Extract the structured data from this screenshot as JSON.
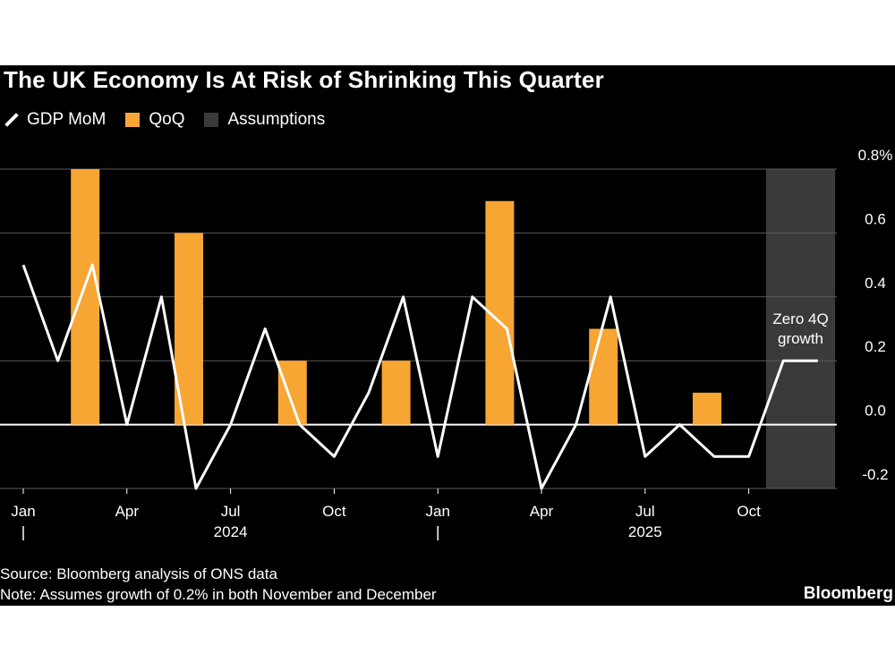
{
  "chart_data": {
    "type": "bar+line",
    "title": "The UK Economy Is At Risk of Shrinking This Quarter",
    "legend": [
      {
        "label": "GDP MoM",
        "kind": "line",
        "color": "#ffffff"
      },
      {
        "label": "QoQ",
        "kind": "bar",
        "color": "#f7a533"
      },
      {
        "label": "Assumptions",
        "kind": "area",
        "color": "#3a3a3a"
      }
    ],
    "months": [
      "2024-01",
      "2024-02",
      "2024-03",
      "2024-04",
      "2024-05",
      "2024-06",
      "2024-07",
      "2024-08",
      "2024-09",
      "2024-10",
      "2024-11",
      "2024-12",
      "2025-01",
      "2025-02",
      "2025-03",
      "2025-04",
      "2025-05",
      "2025-06",
      "2025-07",
      "2025-08",
      "2025-09",
      "2025-10",
      "2025-11",
      "2025-12"
    ],
    "series": [
      {
        "name": "GDP MoM",
        "type": "line",
        "values": [
          0.5,
          0.2,
          0.5,
          0.0,
          0.4,
          -0.2,
          0.0,
          0.3,
          0.0,
          -0.1,
          0.1,
          0.4,
          -0.1,
          0.4,
          0.3,
          -0.2,
          0.0,
          0.4,
          -0.1,
          0.0,
          -0.1,
          -0.1,
          0.2,
          0.2
        ]
      },
      {
        "name": "QoQ",
        "type": "bar",
        "points": [
          {
            "month_index": 2,
            "value": 0.8
          },
          {
            "month_index": 5,
            "value": 0.6
          },
          {
            "month_index": 8,
            "value": 0.2
          },
          {
            "month_index": 11,
            "value": 0.2
          },
          {
            "month_index": 14,
            "value": 0.7
          },
          {
            "month_index": 17,
            "value": 0.3
          },
          {
            "month_index": 20,
            "value": 0.1
          }
        ]
      }
    ],
    "assumption_range": {
      "from_month_index": 22,
      "to_month_index": 23
    },
    "ylim": [
      -0.2,
      0.8
    ],
    "yticks": [
      {
        "value": 0.8,
        "label": "0.8%"
      },
      {
        "value": 0.6,
        "label": "0.6"
      },
      {
        "value": 0.4,
        "label": "0.4"
      },
      {
        "value": 0.2,
        "label": "0.2"
      },
      {
        "value": 0.0,
        "label": "0.0"
      },
      {
        "value": -0.2,
        "label": "-0.2"
      }
    ],
    "xticks": [
      {
        "month_index": 0,
        "label": "Jan"
      },
      {
        "month_index": 3,
        "label": "Apr"
      },
      {
        "month_index": 6,
        "label": "Jul"
      },
      {
        "month_index": 9,
        "label": "Oct"
      },
      {
        "month_index": 12,
        "label": "Jan"
      },
      {
        "month_index": 15,
        "label": "Apr"
      },
      {
        "month_index": 18,
        "label": "Jul"
      },
      {
        "month_index": 21,
        "label": "Oct"
      }
    ],
    "year_labels": [
      {
        "label": "2024",
        "center_month_index": 6
      },
      {
        "label": "2025",
        "center_month_index": 18
      }
    ],
    "year_separators": [
      0,
      12
    ],
    "annotation": {
      "lines": [
        "Zero 4Q",
        "growth"
      ],
      "month_index": 23,
      "value": 0.2
    }
  },
  "footer": {
    "source": "Source: Bloomberg analysis of ONS data",
    "note": "Note: Assumes growth of 0.2% in both November and December",
    "brand": "Bloomberg"
  },
  "colors": {
    "background": "#000000",
    "bar": "#f7a533",
    "line": "#ffffff",
    "assumption": "#3a3a3a",
    "grid": "#5a5a5a"
  }
}
